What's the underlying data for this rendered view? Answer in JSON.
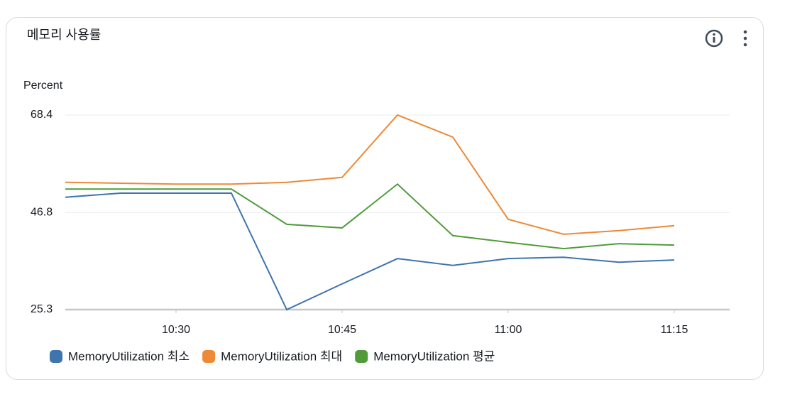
{
  "chart_data": {
    "type": "line",
    "title": "메모리 사용률",
    "y_label": "Percent",
    "x": [
      620,
      625,
      630,
      635,
      640,
      645,
      650,
      655,
      660,
      665,
      670,
      675
    ],
    "xlim": [
      620,
      680
    ],
    "xticks": [
      {
        "value": 630,
        "label": "10:30"
      },
      {
        "value": 645,
        "label": "10:45"
      },
      {
        "value": 660,
        "label": "11:00"
      },
      {
        "value": 675,
        "label": "11:15"
      }
    ],
    "ylim": [
      25.3,
      68.4
    ],
    "yticks": [
      25.3,
      46.8,
      68.4
    ],
    "grid": true,
    "series": [
      {
        "name": "MemoryUtilization 최소",
        "color": "#3f74ae",
        "values": [
          50.2,
          51.1,
          51.1,
          51.1,
          25.3,
          31.0,
          36.6,
          35.1,
          36.6,
          36.9,
          35.8,
          36.3
        ]
      },
      {
        "name": "MemoryUtilization 최대",
        "color": "#ee8936",
        "values": [
          53.5,
          53.3,
          53.1,
          53.1,
          53.5,
          54.6,
          68.4,
          63.5,
          45.3,
          42.0,
          42.8,
          43.9
        ]
      },
      {
        "name": "MemoryUtilization 평균",
        "color": "#519b3b",
        "values": [
          52.0,
          52.0,
          52.0,
          52.0,
          44.2,
          43.4,
          53.1,
          41.7,
          40.2,
          38.8,
          39.9,
          39.6
        ]
      }
    ]
  }
}
